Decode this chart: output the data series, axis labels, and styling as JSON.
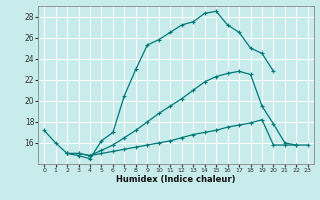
{
  "title": "",
  "xlabel": "Humidex (Indice chaleur)",
  "line_color": "#007878",
  "bg_color": "#c8ecec",
  "grid_color": "#b0d8d8",
  "xlim": [
    -0.5,
    23.5
  ],
  "ylim": [
    14,
    29
  ],
  "yticks": [
    16,
    18,
    20,
    22,
    24,
    26,
    28
  ],
  "xticks": [
    0,
    1,
    2,
    3,
    4,
    5,
    6,
    7,
    8,
    9,
    10,
    11,
    12,
    13,
    14,
    15,
    16,
    17,
    18,
    19,
    20,
    21,
    22,
    23
  ],
  "line1_x": [
    0,
    1,
    2,
    3,
    4,
    5,
    6,
    7,
    8,
    9,
    10,
    11,
    12,
    13,
    14,
    15,
    16,
    17,
    18,
    19,
    20
  ],
  "line1_y": [
    17.2,
    16.0,
    15.0,
    14.8,
    14.5,
    16.2,
    17.0,
    20.5,
    23.0,
    25.3,
    25.8,
    26.5,
    27.2,
    27.5,
    28.3,
    28.5,
    27.2,
    26.5,
    25.0,
    24.5,
    22.8
  ],
  "line2_x": [
    2,
    3,
    4,
    5,
    6,
    7,
    8,
    9,
    10,
    11,
    12,
    13,
    14,
    15,
    16,
    17,
    18,
    19,
    20,
    21,
    22
  ],
  "line2_y": [
    15.0,
    15.0,
    14.8,
    15.3,
    15.8,
    16.5,
    17.2,
    18.0,
    18.8,
    19.5,
    20.2,
    21.0,
    21.8,
    22.3,
    22.6,
    22.8,
    22.5,
    19.5,
    17.8,
    16.0,
    15.8
  ],
  "line3_x": [
    2,
    3,
    4,
    5,
    6,
    7,
    8,
    9,
    10,
    11,
    12,
    13,
    14,
    15,
    16,
    17,
    18,
    19,
    20,
    21,
    22,
    23
  ],
  "line3_y": [
    15.0,
    15.0,
    14.8,
    15.0,
    15.2,
    15.4,
    15.6,
    15.8,
    16.0,
    16.2,
    16.5,
    16.8,
    17.0,
    17.2,
    17.5,
    17.7,
    17.9,
    18.2,
    15.8,
    15.8,
    15.8,
    15.8
  ]
}
